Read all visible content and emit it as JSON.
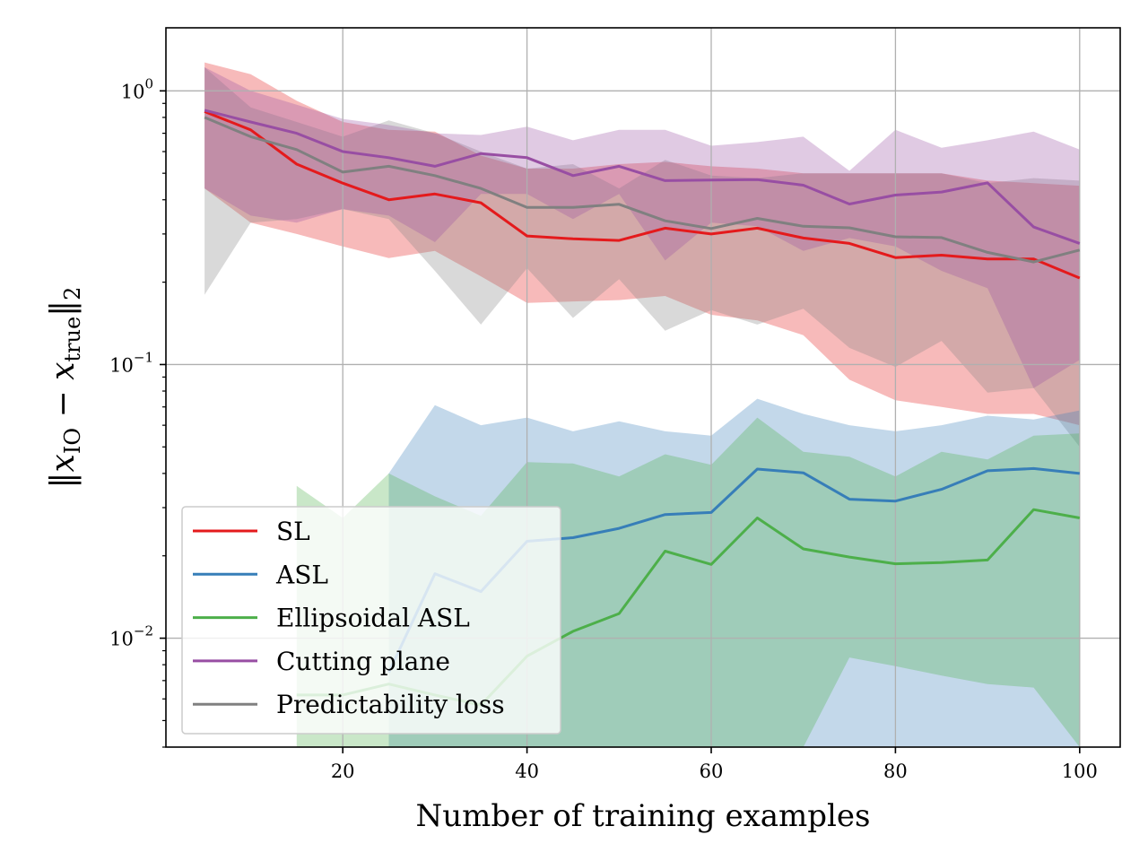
{
  "chart_data": {
    "type": "line",
    "xlabel": "Number of training examples",
    "ylabel_parts": {
      "open": "‖",
      "var1": "x",
      "sub1": "IO",
      "minus": " − ",
      "var2": "x",
      "sub2": "true",
      "close": "‖",
      "norm": "2"
    },
    "yscale": "log",
    "xlim": [
      0.8,
      104.4
    ],
    "ylim": [
      0.004,
      1.7
    ],
    "grid": true,
    "legend_position": "lower-left",
    "x_ticks": [
      {
        "value": 20,
        "label": "20"
      },
      {
        "value": 40,
        "label": "40"
      },
      {
        "value": 60,
        "label": "60"
      },
      {
        "value": 80,
        "label": "80"
      },
      {
        "value": 100,
        "label": "100"
      }
    ],
    "y_ticks": [
      {
        "value": 1,
        "base": "10",
        "exp": "0"
      },
      {
        "value": 0.1,
        "base": "10",
        "exp": "−1"
      },
      {
        "value": 0.01,
        "base": "10",
        "exp": "−2"
      }
    ],
    "x": [
      5,
      10,
      15,
      20,
      25,
      30,
      35,
      40,
      45,
      50,
      55,
      60,
      65,
      70,
      75,
      80,
      85,
      90,
      95,
      100
    ],
    "series": [
      {
        "name": "SL",
        "color": "#e41a1c",
        "values": [
          0.84,
          0.72,
          0.54,
          0.46,
          0.4,
          0.42,
          0.39,
          0.295,
          0.288,
          0.284,
          0.315,
          0.3,
          0.315,
          0.29,
          0.277,
          0.246,
          0.251,
          0.243,
          0.243,
          0.207
        ],
        "band_upper": [
          1.27,
          1.15,
          0.92,
          0.77,
          0.72,
          0.71,
          0.58,
          0.52,
          0.52,
          0.54,
          0.55,
          0.53,
          0.52,
          0.5,
          0.5,
          0.5,
          0.5,
          0.47,
          0.46,
          0.45
        ],
        "band_lower": [
          0.44,
          0.33,
          0.3,
          0.27,
          0.245,
          0.26,
          0.21,
          0.168,
          0.17,
          0.172,
          0.178,
          0.152,
          0.145,
          0.128,
          0.088,
          0.074,
          0.07,
          0.066,
          0.066,
          0.06
        ]
      },
      {
        "name": "ASL",
        "color": "#377eb8",
        "values": [
          null,
          null,
          null,
          null,
          0.0075,
          0.0172,
          0.0148,
          0.0226,
          0.0233,
          0.0252,
          0.0283,
          0.0288,
          0.0415,
          0.0402,
          0.0322,
          0.0317,
          0.035,
          0.0409,
          0.0417,
          0.04
        ],
        "band_upper": [
          null,
          null,
          null,
          null,
          0.04,
          0.071,
          0.06,
          0.064,
          0.057,
          0.062,
          0.057,
          0.055,
          0.075,
          0.066,
          0.06,
          0.057,
          0.06,
          0.065,
          0.063,
          0.068
        ],
        "band_lower": [
          null,
          null,
          null,
          null,
          0.004,
          0.004,
          0.004,
          0.004,
          0.004,
          0.004,
          0.004,
          0.004,
          0.004,
          0.004,
          0.004,
          0.004,
          0.004,
          0.004,
          0.004,
          0.004
        ]
      },
      {
        "name": "Ellipsoidal ASL",
        "color": "#4daf4a",
        "values": [
          null,
          null,
          0.0062,
          0.0062,
          0.0068,
          0.0062,
          0.0057,
          0.0086,
          0.0106,
          0.0123,
          0.0208,
          0.0186,
          0.0275,
          0.0212,
          0.0198,
          0.0187,
          0.0189,
          0.0193,
          0.0295,
          0.0275
        ],
        "band_upper": [
          null,
          null,
          0.036,
          0.0275,
          0.04,
          0.033,
          0.028,
          0.044,
          0.0435,
          0.039,
          0.047,
          0.043,
          0.064,
          0.048,
          0.046,
          0.039,
          0.048,
          0.045,
          0.055,
          0.056
        ],
        "band_lower": [
          null,
          null,
          0.004,
          0.004,
          0.004,
          0.004,
          0.004,
          0.004,
          0.004,
          0.004,
          0.004,
          0.004,
          0.004,
          0.004,
          0.0085,
          0.0079,
          0.0073,
          0.0068,
          0.0066,
          0.004
        ]
      },
      {
        "name": "Cutting plane",
        "color": "#984ea3",
        "values": [
          0.85,
          0.77,
          0.7,
          0.6,
          0.57,
          0.53,
          0.59,
          0.57,
          0.49,
          0.53,
          0.47,
          0.472,
          0.474,
          0.452,
          0.386,
          0.416,
          0.427,
          0.461,
          0.318,
          0.277
        ],
        "band_upper": [
          1.22,
          1.0,
          0.89,
          0.79,
          0.75,
          0.7,
          0.69,
          0.74,
          0.66,
          0.72,
          0.72,
          0.63,
          0.65,
          0.68,
          0.51,
          0.72,
          0.62,
          0.66,
          0.71,
          0.61
        ],
        "band_lower": [
          0.44,
          0.35,
          0.33,
          0.37,
          0.35,
          0.28,
          0.42,
          0.42,
          0.34,
          0.42,
          0.24,
          0.33,
          0.32,
          0.26,
          0.29,
          0.27,
          0.22,
          0.19,
          0.082,
          0.104
        ]
      },
      {
        "name": "Predictability loss",
        "color": "#808080",
        "values": [
          0.8,
          0.68,
          0.61,
          0.505,
          0.53,
          0.49,
          0.44,
          0.375,
          0.375,
          0.385,
          0.335,
          0.314,
          0.342,
          0.32,
          0.316,
          0.293,
          0.291,
          0.257,
          0.237,
          0.262
        ],
        "band_upper": [
          1.22,
          0.87,
          0.77,
          0.68,
          0.78,
          0.7,
          0.6,
          0.52,
          0.54,
          0.44,
          0.56,
          0.49,
          0.48,
          0.5,
          0.5,
          0.5,
          0.5,
          0.46,
          0.48,
          0.47
        ],
        "band_lower": [
          0.18,
          0.33,
          0.34,
          0.37,
          0.34,
          0.22,
          0.14,
          0.225,
          0.148,
          0.205,
          0.133,
          0.158,
          0.14,
          0.16,
          0.115,
          0.098,
          0.122,
          0.079,
          0.082,
          0.05
        ]
      }
    ]
  }
}
